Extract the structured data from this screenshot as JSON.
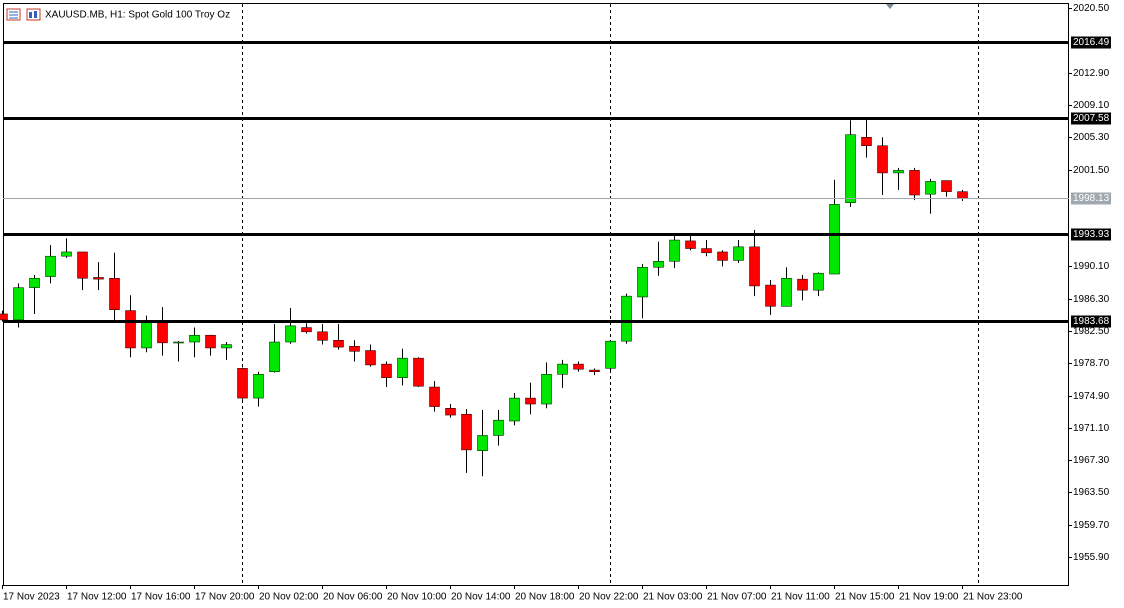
{
  "chart_data": {
    "type": "candlestick",
    "title": "XAUUSD.MB, H1:  Spot Gold 100 Troy Oz",
    "categories": [
      "17 Nov 2023",
      null,
      null,
      null,
      "17 Nov 12:00",
      null,
      null,
      null,
      "17 Nov 16:00",
      null,
      null,
      null,
      "17 Nov 20:00",
      null,
      null,
      null,
      "20 Nov 02:00",
      null,
      null,
      null,
      "20 Nov 06:00",
      null,
      null,
      null,
      "20 Nov 10:00",
      null,
      null,
      null,
      "20 Nov 14:00",
      null,
      null,
      null,
      "20 Nov 18:00",
      null,
      null,
      null,
      "20 Nov 22:00",
      null,
      null,
      null,
      "21 Nov 03:00",
      null,
      null,
      null,
      "21 Nov 07:00",
      null,
      null,
      null,
      "21 Nov 11:00",
      null,
      null,
      null,
      "21 Nov 15:00",
      null,
      null,
      null,
      "21 Nov 19:00",
      null,
      null,
      null,
      "21 Nov 23:00"
    ],
    "open": [
      1984.5,
      1983.8,
      1987.6,
      1988.9,
      1991.3,
      1991.8,
      1988.8,
      1988.7,
      1984.9,
      1980.5,
      1983.7,
      1981.1,
      1981.2,
      1982.0,
      1980.5,
      1978.1,
      1974.6,
      1977.7,
      1981.2,
      1982.9,
      1982.4,
      1981.4,
      1980.7,
      1980.2,
      1978.6,
      1977.0,
      1979.3,
      1975.9,
      1973.4,
      1972.7,
      1968.4,
      1970.2,
      1971.9,
      1974.6,
      1973.9,
      1977.4,
      1978.6,
      1977.9,
      1978.1,
      1981.3,
      1986.5,
      1990.0,
      1990.7,
      1993.1,
      1992.2,
      1991.8,
      1990.8,
      1992.4,
      1987.9,
      1985.4,
      1988.6,
      1987.3,
      1989.2,
      1997.6,
      2005.3,
      2004.3,
      2001.1,
      2001.4,
      1998.6,
      2000.2,
      1998.9
    ],
    "high": [
      1984.9,
      1988.1,
      1989.1,
      1992.6,
      1993.4,
      1991.8,
      1990.6,
      1991.7,
      1986.7,
      1984.3,
      1985.3,
      1981.3,
      1982.9,
      1982.0,
      1981.2,
      1978.2,
      1977.7,
      1983.3,
      1985.2,
      1983.4,
      1983.3,
      1983.3,
      1981.4,
      1980.9,
      1978.9,
      1980.4,
      1979.4,
      1976.6,
      1973.9,
      1973.3,
      1973.2,
      1973.2,
      1975.2,
      1976.4,
      1978.8,
      1979.1,
      1978.9,
      1978.1,
      1981.4,
      1986.9,
      1990.4,
      1993.0,
      1993.9,
      1993.7,
      1993.2,
      1992.0,
      1993.2,
      1994.4,
      1988.5,
      1990.0,
      1989.1,
      1989.4,
      2000.3,
      2007.3,
      2007.6,
      2005.3,
      2001.7,
      2001.7,
      2000.4,
      2000.2,
      1999.1
    ],
    "low": [
      1983.6,
      1982.9,
      1984.5,
      1988.1,
      1991.1,
      1987.3,
      1987.3,
      1983.6,
      1979.4,
      1980.0,
      1979.6,
      1978.9,
      1979.4,
      1979.6,
      1979.1,
      1974.4,
      1973.6,
      1977.6,
      1981.0,
      1982.2,
      1980.9,
      1980.3,
      1978.9,
      1978.3,
      1975.9,
      1976.1,
      1975.9,
      1973.0,
      1972.3,
      1965.8,
      1965.4,
      1969.0,
      1971.4,
      1972.7,
      1973.4,
      1975.8,
      1977.7,
      1977.3,
      1977.9,
      1981.0,
      1984.0,
      1989.0,
      1989.9,
      1992.0,
      1991.3,
      1990.1,
      1990.5,
      1986.6,
      1984.4,
      1985.4,
      1986.1,
      1986.6,
      1989.2,
      1997.1,
      2002.9,
      1998.5,
      1999.1,
      1997.9,
      1996.3,
      1998.3,
      1997.8
    ],
    "close": [
      1983.8,
      1987.6,
      1988.7,
      1991.3,
      1991.8,
      1988.7,
      1988.6,
      1985.0,
      1980.5,
      1983.7,
      1981.1,
      1981.2,
      1982.0,
      1980.5,
      1980.9,
      1974.6,
      1977.4,
      1981.2,
      1983.1,
      1982.4,
      1981.4,
      1980.6,
      1980.1,
      1978.5,
      1977.0,
      1979.3,
      1976.0,
      1973.6,
      1972.6,
      1968.5,
      1970.2,
      1972.0,
      1974.6,
      1973.9,
      1977.4,
      1978.6,
      1978.0,
      1977.7,
      1981.3,
      1986.6,
      1990.0,
      1990.7,
      1993.2,
      1992.2,
      1991.7,
      1990.8,
      1992.4,
      1987.8,
      1985.4,
      1988.7,
      1987.3,
      1989.3,
      1997.4,
      2005.6,
      2004.3,
      2001.1,
      2001.4,
      1998.5,
      2000.1,
      1998.9,
      1998.13
    ],
    "up_color": "#00e600",
    "down_color": "#ff0000",
    "ylim": [
      1952.6,
      2021.1
    ],
    "yticks": [
      {
        "value": 2020.5,
        "label": "2020.50"
      },
      {
        "value": 2012.9,
        "label": "2012.90"
      },
      {
        "value": 2009.1,
        "label": "2009.10"
      },
      {
        "value": 2005.3,
        "label": "2005.30"
      },
      {
        "value": 2001.5,
        "label": "2001.50"
      },
      {
        "value": 1990.1,
        "label": "1990.10"
      },
      {
        "value": 1986.3,
        "label": "1986.30"
      },
      {
        "value": 1982.5,
        "label": "1982.50"
      },
      {
        "value": 1978.7,
        "label": "1978.70"
      },
      {
        "value": 1974.9,
        "label": "1974.90"
      },
      {
        "value": 1971.1,
        "label": "1971.10"
      },
      {
        "value": 1967.3,
        "label": "1967.30"
      },
      {
        "value": 1963.5,
        "label": "1963.50"
      },
      {
        "value": 1959.7,
        "label": "1959.70"
      },
      {
        "value": 1955.9,
        "label": "1955.90"
      }
    ],
    "levels": [
      2016.49,
      2007.58,
      1993.93,
      1983.68
    ],
    "level_color": "#000000",
    "current_price": 1998.13,
    "current_price_color": "#a0a8b0"
  }
}
